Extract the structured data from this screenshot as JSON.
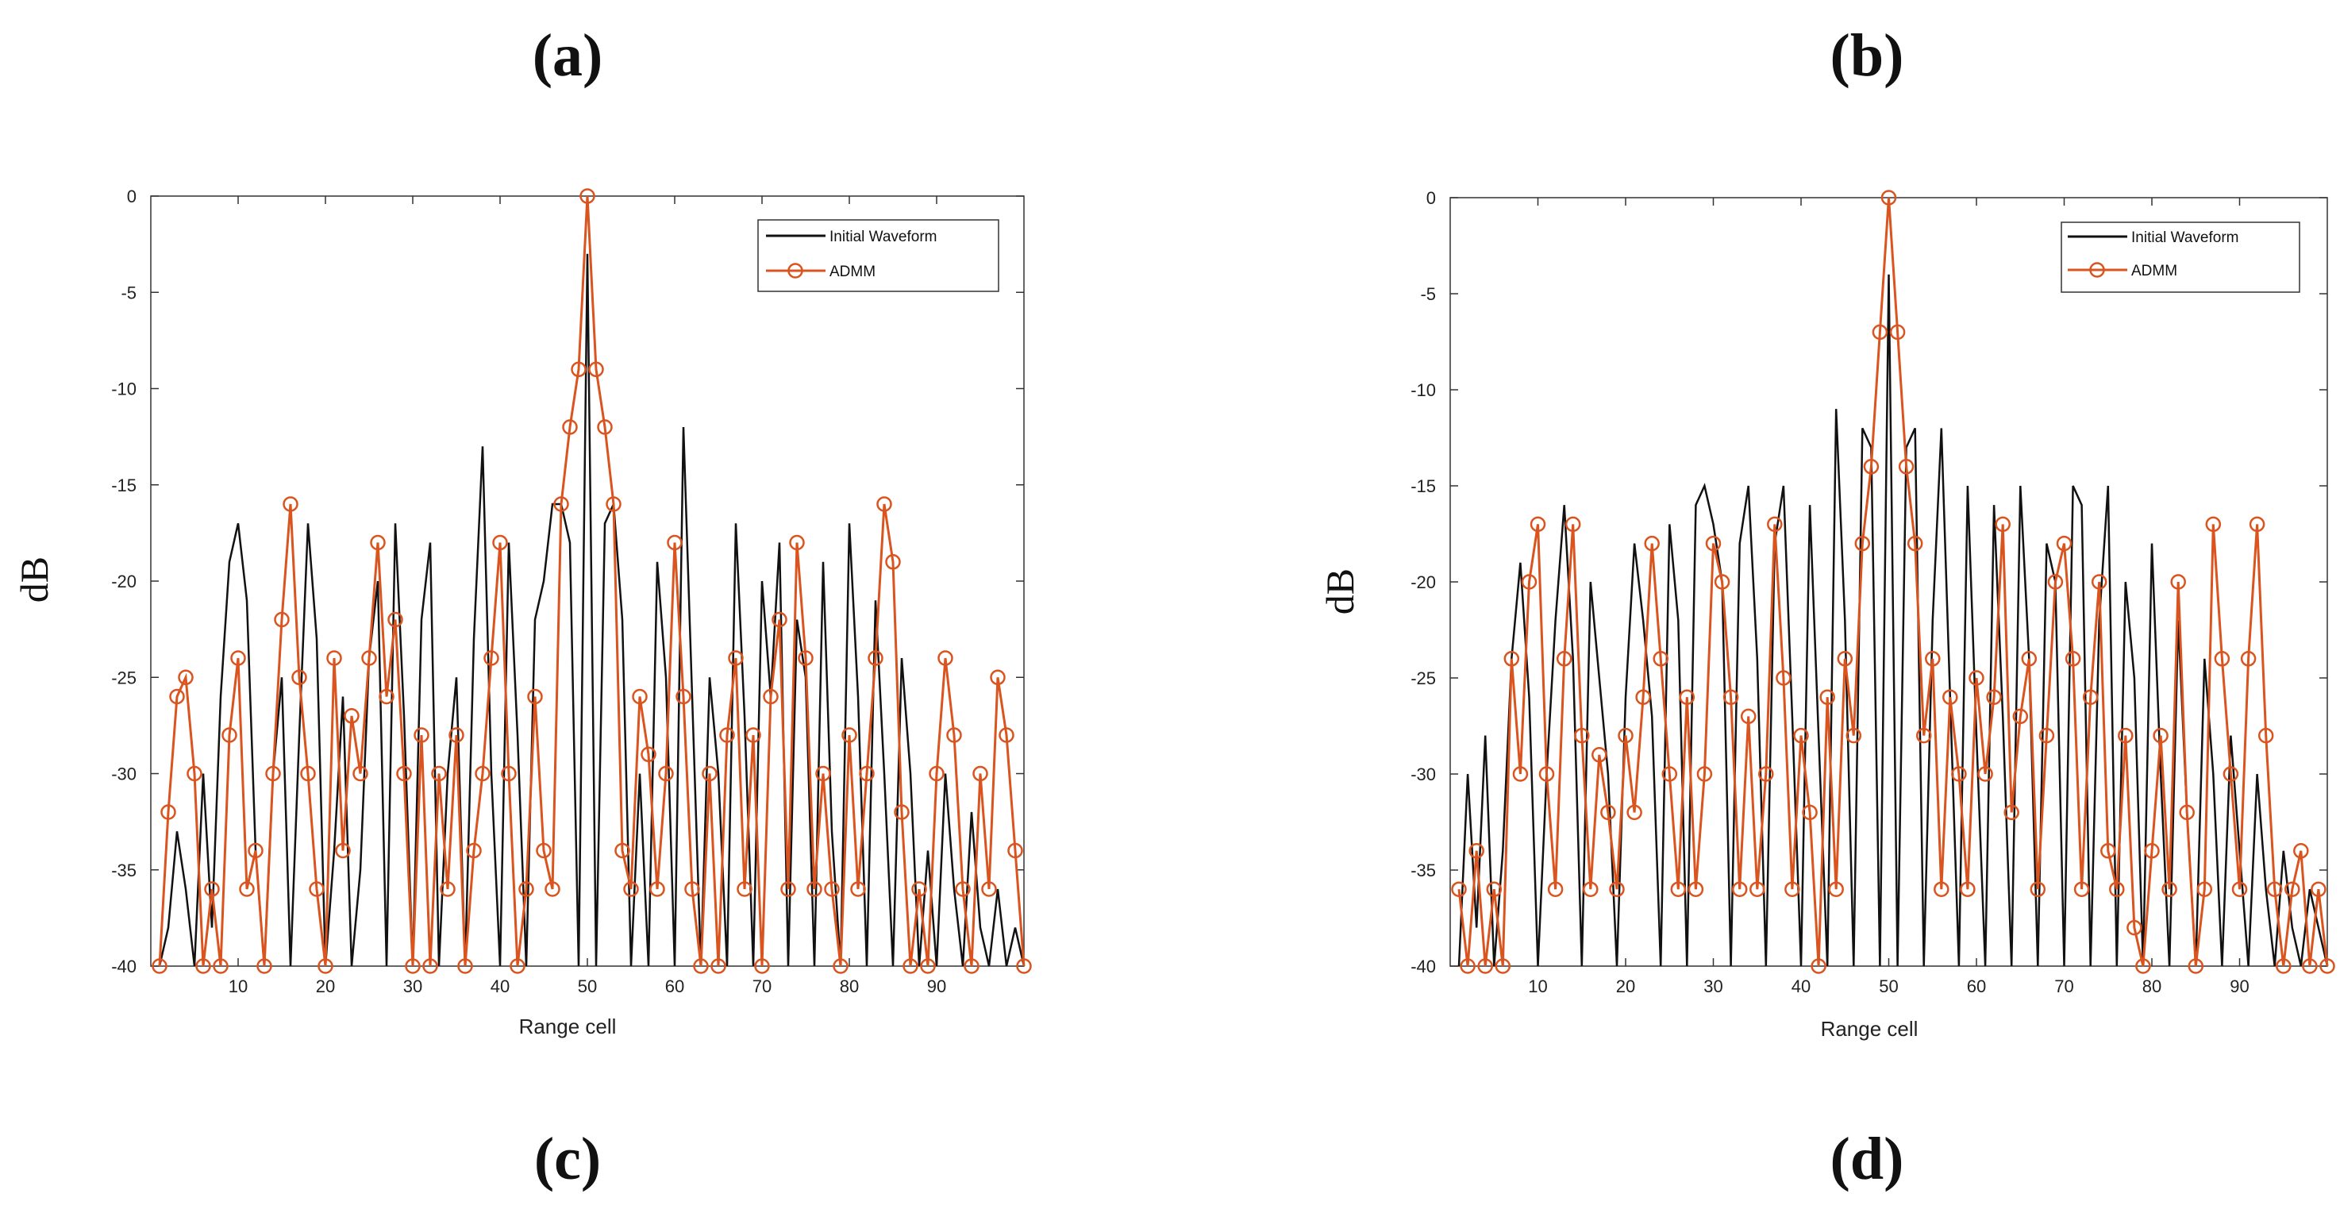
{
  "panel_labels": [
    "(a)",
    "(b)",
    "(c)",
    "(d)"
  ],
  "colors": {
    "initial": "#111111",
    "admm": "#d9541e",
    "axis": "#333333"
  },
  "chart_data": [
    {
      "type": "line",
      "panel": "left",
      "title": "",
      "xlabel": "Range cell",
      "ylabel": "dB",
      "xlim": [
        0,
        100
      ],
      "ylim": [
        -40,
        0
      ],
      "xticks": [
        10,
        20,
        30,
        40,
        50,
        60,
        70,
        80,
        90
      ],
      "xtick_labels": [
        "10",
        "20",
        "30",
        "40",
        "50",
        "60",
        "70",
        "80",
        "90"
      ],
      "yticks": [
        0,
        -5,
        -10,
        -15,
        -20,
        -25,
        -30,
        -35,
        -40
      ],
      "ytick_labels": [
        "0",
        "-5",
        "-10",
        "-15",
        "-20",
        "-25",
        "-30",
        "-35",
        "-40"
      ],
      "legend": {
        "position": "top-right",
        "entries": [
          "Initial Waveform",
          "ADMM"
        ]
      },
      "series": [
        {
          "name": "Initial Waveform",
          "x": [
            1,
            2,
            3,
            4,
            5,
            6,
            7,
            8,
            9,
            10,
            11,
            12,
            13,
            14,
            15,
            16,
            17,
            18,
            19,
            20,
            21,
            22,
            23,
            24,
            25,
            26,
            27,
            28,
            29,
            30,
            31,
            32,
            33,
            34,
            35,
            36,
            37,
            38,
            39,
            40,
            41,
            42,
            43,
            44,
            45,
            46,
            47,
            48,
            49,
            50,
            51,
            52,
            53,
            54,
            55,
            56,
            57,
            58,
            59,
            60,
            61,
            62,
            63,
            64,
            65,
            66,
            67,
            68,
            69,
            70,
            71,
            72,
            73,
            74,
            75,
            76,
            77,
            78,
            79,
            80,
            81,
            82,
            83,
            84,
            85,
            86,
            87,
            88,
            89,
            90,
            91,
            92,
            93,
            94,
            95,
            96,
            97,
            98,
            99,
            100
          ],
          "values": [
            -40,
            -38,
            -33,
            -36,
            -40,
            -30,
            -38,
            -26,
            -19,
            -17,
            -21,
            -34,
            -40,
            -30,
            -25,
            -40,
            -28,
            -17,
            -23,
            -40,
            -34,
            -26,
            -40,
            -35,
            -24,
            -20,
            -40,
            -17,
            -27,
            -40,
            -22,
            -18,
            -40,
            -30,
            -25,
            -40,
            -23,
            -13,
            -30,
            -40,
            -18,
            -28,
            -40,
            -22,
            -20,
            -16,
            -16,
            -18,
            -40,
            -3,
            -40,
            -17,
            -16,
            -22,
            -40,
            -30,
            -40,
            -19,
            -25,
            -40,
            -12,
            -26,
            -40,
            -25,
            -30,
            -40,
            -17,
            -27,
            -40,
            -20,
            -26,
            -18,
            -40,
            -22,
            -25,
            -40,
            -19,
            -33,
            -40,
            -17,
            -26,
            -40,
            -21,
            -30,
            -40,
            -24,
            -30,
            -40,
            -34,
            -40,
            -30,
            -36,
            -40,
            -32,
            -38,
            -40,
            -36,
            -40,
            -38,
            -40
          ]
        },
        {
          "name": "ADMM",
          "x": [
            1,
            2,
            3,
            4,
            5,
            6,
            7,
            8,
            9,
            10,
            11,
            12,
            13,
            14,
            15,
            16,
            17,
            18,
            19,
            20,
            21,
            22,
            23,
            24,
            25,
            26,
            27,
            28,
            29,
            30,
            31,
            32,
            33,
            34,
            35,
            36,
            37,
            38,
            39,
            40,
            41,
            42,
            43,
            44,
            45,
            46,
            47,
            48,
            49,
            50,
            51,
            52,
            53,
            54,
            55,
            56,
            57,
            58,
            59,
            60,
            61,
            62,
            63,
            64,
            65,
            66,
            67,
            68,
            69,
            70,
            71,
            72,
            73,
            74,
            75,
            76,
            77,
            78,
            79,
            80,
            81,
            82,
            83,
            84,
            85,
            86,
            87,
            88,
            89,
            90,
            91,
            92,
            93,
            94,
            95,
            96,
            97,
            98,
            99,
            100
          ],
          "values": [
            -40,
            -32,
            -26,
            -25,
            -30,
            -40,
            -36,
            -40,
            -28,
            -24,
            -36,
            -34,
            -40,
            -30,
            -22,
            -16,
            -25,
            -30,
            -36,
            -40,
            -24,
            -34,
            -27,
            -30,
            -24,
            -18,
            -26,
            -22,
            -30,
            -40,
            -28,
            -40,
            -30,
            -36,
            -28,
            -40,
            -34,
            -30,
            -24,
            -18,
            -30,
            -40,
            -36,
            -26,
            -34,
            -36,
            -16,
            -12,
            -9,
            0,
            -9,
            -12,
            -16,
            -34,
            -36,
            -26,
            -29,
            -36,
            -30,
            -18,
            -26,
            -36,
            -40,
            -30,
            -40,
            -28,
            -24,
            -36,
            -28,
            -40,
            -26,
            -22,
            -36,
            -18,
            -24,
            -36,
            -30,
            -36,
            -40,
            -28,
            -36,
            -30,
            -24,
            -16,
            -19,
            -32,
            -40,
            -36,
            -40,
            -30,
            -24,
            -28,
            -36,
            -40,
            -30,
            -36,
            -25,
            -28,
            -34,
            -40
          ]
        }
      ]
    },
    {
      "type": "line",
      "panel": "right",
      "title": "",
      "xlabel": "Range cell",
      "ylabel": "dB",
      "xlim": [
        0,
        100
      ],
      "ylim": [
        -40,
        0
      ],
      "xticks": [
        10,
        20,
        30,
        40,
        50,
        60,
        70,
        80,
        90
      ],
      "xtick_labels": [
        "10",
        "20",
        "30",
        "40",
        "50",
        "60",
        "70",
        "80",
        "90"
      ],
      "yticks": [
        0,
        -5,
        -10,
        -15,
        -20,
        -25,
        -30,
        -35,
        -40
      ],
      "ytick_labels": [
        "0",
        "-5",
        "-10",
        "-15",
        "-20",
        "-25",
        "-30",
        "-35",
        "-40"
      ],
      "legend": {
        "position": "top-right",
        "entries": [
          "Initial Waveform",
          "ADMM"
        ]
      },
      "series": [
        {
          "name": "Initial Waveform",
          "x": [
            1,
            2,
            3,
            4,
            5,
            6,
            7,
            8,
            9,
            10,
            11,
            12,
            13,
            14,
            15,
            16,
            17,
            18,
            19,
            20,
            21,
            22,
            23,
            24,
            25,
            26,
            27,
            28,
            29,
            30,
            31,
            32,
            33,
            34,
            35,
            36,
            37,
            38,
            39,
            40,
            41,
            42,
            43,
            44,
            45,
            46,
            47,
            48,
            49,
            50,
            51,
            52,
            53,
            54,
            55,
            56,
            57,
            58,
            59,
            60,
            61,
            62,
            63,
            64,
            65,
            66,
            67,
            68,
            69,
            70,
            71,
            72,
            73,
            74,
            75,
            76,
            77,
            78,
            79,
            80,
            81,
            82,
            83,
            84,
            85,
            86,
            87,
            88,
            89,
            90,
            91,
            92,
            93,
            94,
            95,
            96,
            97,
            98,
            99,
            100
          ],
          "values": [
            -40,
            -30,
            -38,
            -28,
            -40,
            -34,
            -24,
            -19,
            -26,
            -40,
            -30,
            -22,
            -16,
            -24,
            -40,
            -20,
            -25,
            -30,
            -40,
            -26,
            -18,
            -22,
            -27,
            -40,
            -17,
            -22,
            -40,
            -16,
            -15,
            -17,
            -20,
            -40,
            -18,
            -15,
            -24,
            -40,
            -18,
            -15,
            -27,
            -40,
            -16,
            -28,
            -40,
            -11,
            -22,
            -40,
            -12,
            -13,
            -40,
            -4,
            -40,
            -13,
            -12,
            -40,
            -22,
            -12,
            -26,
            -40,
            -15,
            -28,
            -40,
            -16,
            -27,
            -40,
            -15,
            -24,
            -40,
            -18,
            -20,
            -40,
            -15,
            -16,
            -40,
            -22,
            -15,
            -40,
            -20,
            -25,
            -40,
            -18,
            -30,
            -40,
            -22,
            -32,
            -40,
            -24,
            -30,
            -40,
            -28,
            -34,
            -40,
            -30,
            -36,
            -40,
            -34,
            -38,
            -40,
            -36,
            -38,
            -40
          ]
        },
        {
          "name": "ADMM",
          "x": [
            1,
            2,
            3,
            4,
            5,
            6,
            7,
            8,
            9,
            10,
            11,
            12,
            13,
            14,
            15,
            16,
            17,
            18,
            19,
            20,
            21,
            22,
            23,
            24,
            25,
            26,
            27,
            28,
            29,
            30,
            31,
            32,
            33,
            34,
            35,
            36,
            37,
            38,
            39,
            40,
            41,
            42,
            43,
            44,
            45,
            46,
            47,
            48,
            49,
            50,
            51,
            52,
            53,
            54,
            55,
            56,
            57,
            58,
            59,
            60,
            61,
            62,
            63,
            64,
            65,
            66,
            67,
            68,
            69,
            70,
            71,
            72,
            73,
            74,
            75,
            76,
            77,
            78,
            79,
            80,
            81,
            82,
            83,
            84,
            85,
            86,
            87,
            88,
            89,
            90,
            91,
            92,
            93,
            94,
            95,
            96,
            97,
            98,
            99,
            100
          ],
          "values": [
            -36,
            -40,
            -34,
            -40,
            -36,
            -40,
            -24,
            -30,
            -20,
            -17,
            -30,
            -36,
            -24,
            -17,
            -28,
            -36,
            -29,
            -32,
            -36,
            -28,
            -32,
            -26,
            -18,
            -24,
            -30,
            -36,
            -26,
            -36,
            -30,
            -18,
            -20,
            -26,
            -36,
            -27,
            -36,
            -30,
            -17,
            -25,
            -36,
            -28,
            -32,
            -40,
            -26,
            -36,
            -24,
            -28,
            -18,
            -14,
            -7,
            0,
            -7,
            -14,
            -18,
            -28,
            -24,
            -36,
            -26,
            -30,
            -36,
            -25,
            -30,
            -26,
            -17,
            -32,
            -27,
            -24,
            -36,
            -28,
            -20,
            -18,
            -24,
            -36,
            -26,
            -20,
            -34,
            -36,
            -28,
            -38,
            -40,
            -34,
            -28,
            -36,
            -20,
            -32,
            -40,
            -36,
            -17,
            -24,
            -30,
            -36,
            -24,
            -17,
            -28,
            -36,
            -40,
            -36,
            -34,
            -40,
            -36,
            -40
          ]
        }
      ]
    }
  ]
}
